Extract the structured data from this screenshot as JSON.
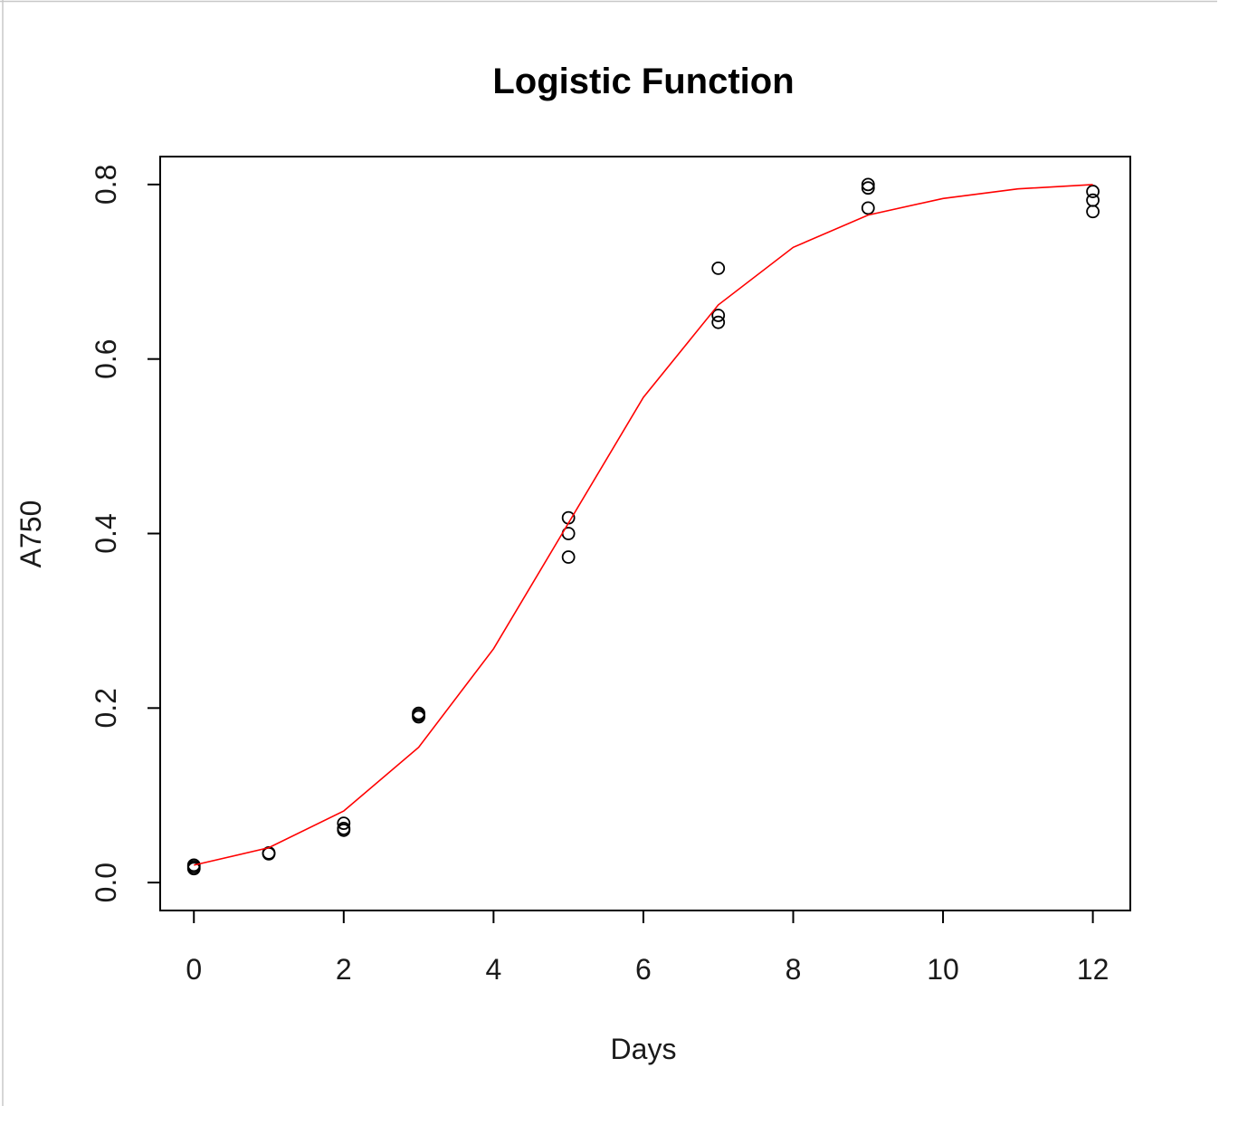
{
  "chart_data": {
    "type": "scatter",
    "title": "Logistic Function",
    "xlabel": "Days",
    "ylabel": "A750",
    "xlim": [
      -0.45,
      12.5
    ],
    "ylim": [
      -0.032,
      0.832
    ],
    "x_ticks": [
      0,
      2,
      4,
      6,
      8,
      10,
      12
    ],
    "x_tick_labels": [
      "0",
      "2",
      "4",
      "6",
      "8",
      "10",
      "12"
    ],
    "y_ticks": [
      0.0,
      0.2,
      0.4,
      0.6,
      0.8
    ],
    "y_tick_labels": [
      "0.0",
      "0.2",
      "0.4",
      "0.6",
      "0.8"
    ],
    "grid": false,
    "legend": "none",
    "series": [
      {
        "type": "scatter",
        "color": "#000000",
        "marker": "open-circle",
        "points": [
          [
            0,
            0.02
          ],
          [
            0,
            0.018
          ],
          [
            0,
            0.016
          ],
          [
            1,
            0.034
          ],
          [
            1,
            0.033
          ],
          [
            2,
            0.068
          ],
          [
            2,
            0.062
          ],
          [
            2,
            0.06
          ],
          [
            3,
            0.194
          ],
          [
            3,
            0.192
          ],
          [
            3,
            0.19
          ],
          [
            5,
            0.418
          ],
          [
            5,
            0.4
          ],
          [
            5,
            0.373
          ],
          [
            7,
            0.704
          ],
          [
            7,
            0.65
          ],
          [
            7,
            0.642
          ],
          [
            9,
            0.8
          ],
          [
            9,
            0.796
          ],
          [
            9,
            0.773
          ],
          [
            12,
            0.792
          ],
          [
            12,
            0.782
          ],
          [
            12,
            0.769
          ]
        ]
      },
      {
        "type": "line",
        "color": "#ff0000",
        "marker": "none",
        "points": [
          [
            0,
            0.02
          ],
          [
            1,
            0.04
          ],
          [
            2,
            0.082
          ],
          [
            3,
            0.155
          ],
          [
            4,
            0.268
          ],
          [
            5,
            0.412
          ],
          [
            6,
            0.556
          ],
          [
            7,
            0.662
          ],
          [
            8,
            0.728
          ],
          [
            9,
            0.765
          ],
          [
            10,
            0.784
          ],
          [
            11,
            0.795
          ],
          [
            12,
            0.8
          ]
        ]
      }
    ]
  }
}
